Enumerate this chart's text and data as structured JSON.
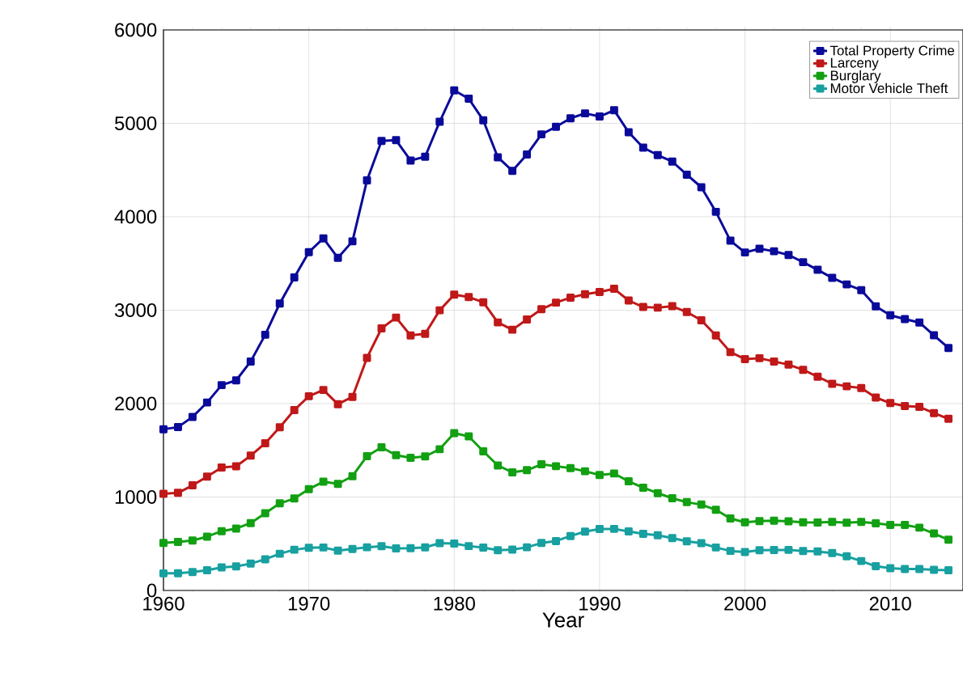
{
  "chart_data": {
    "type": "line",
    "xlabel": "Year",
    "x": [
      1960,
      1961,
      1962,
      1963,
      1964,
      1965,
      1966,
      1967,
      1968,
      1969,
      1970,
      1971,
      1972,
      1973,
      1974,
      1975,
      1976,
      1977,
      1978,
      1979,
      1980,
      1981,
      1982,
      1983,
      1984,
      1985,
      1986,
      1987,
      1988,
      1989,
      1990,
      1991,
      1992,
      1993,
      1994,
      1995,
      1996,
      1997,
      1998,
      1999,
      2000,
      2001,
      2002,
      2003,
      2004,
      2005,
      2006,
      2007,
      2008,
      2009,
      2010,
      2011,
      2012,
      2013,
      2014
    ],
    "series": [
      {
        "name": "Total Property Crime",
        "color": "#0a0a9a",
        "values": [
          1726,
          1748,
          1858,
          2012,
          2198,
          2249,
          2451,
          2737,
          3072,
          3351,
          3621,
          3769,
          3560,
          3737,
          4389,
          4811,
          4820,
          4602,
          4643,
          5017,
          5353,
          5264,
          5033,
          4637,
          4492,
          4666,
          4882,
          4963,
          5054,
          5107,
          5073,
          5140,
          4904,
          4740,
          4660,
          4591,
          4451,
          4316,
          4053,
          3744,
          3618,
          3658,
          3631,
          3591,
          3514,
          3432,
          3347,
          3276,
          3215,
          3041,
          2946,
          2905,
          2868,
          2731,
          2596
        ]
      },
      {
        "name": "Larceny",
        "color": "#c01818",
        "values": [
          1035,
          1045,
          1125,
          1219,
          1316,
          1329,
          1443,
          1576,
          1747,
          1931,
          2079,
          2146,
          1994,
          2072,
          2490,
          2805,
          2921,
          2730,
          2747,
          2999,
          3167,
          3140,
          3085,
          2869,
          2791,
          2901,
          3010,
          3081,
          3135,
          3171,
          3195,
          3229,
          3104,
          3034,
          3027,
          3043,
          2980,
          2892,
          2730,
          2551,
          2477,
          2486,
          2451,
          2417,
          2362,
          2288,
          2213,
          2185,
          2166,
          2065,
          2006,
          1974,
          1965,
          1899,
          1837
        ]
      },
      {
        "name": "Burglary",
        "color": "#12a012",
        "values": [
          509,
          519,
          535,
          576,
          635,
          663,
          721,
          827,
          932,
          984,
          1085,
          1164,
          1141,
          1223,
          1438,
          1532,
          1448,
          1420,
          1435,
          1512,
          1684,
          1650,
          1489,
          1338,
          1264,
          1287,
          1350,
          1330,
          1309,
          1276,
          1236,
          1252,
          1168,
          1100,
          1042,
          987,
          945,
          919,
          863,
          770,
          729,
          742,
          747,
          741,
          730,
          727,
          733,
          726,
          733,
          718,
          701,
          701,
          672,
          610,
          543
        ]
      },
      {
        "name": "Motor Vehicle Theft",
        "color": "#18a0a0",
        "values": [
          183,
          184,
          197,
          217,
          247,
          257,
          287,
          334,
          393,
          436,
          457,
          460,
          426,
          443,
          462,
          474,
          450,
          452,
          461,
          506,
          502,
          475,
          459,
          431,
          437,
          462,
          508,
          529,
          583,
          630,
          658,
          659,
          632,
          606,
          591,
          560,
          526,
          506,
          460,
          423,
          412,
          431,
          433,
          434,
          422,
          417,
          400,
          365,
          315,
          259,
          239,
          230,
          230,
          221,
          216
        ]
      }
    ],
    "xlim": [
      1960,
      2015
    ],
    "ylim": [
      0,
      6000
    ],
    "xticks": [
      1960,
      1970,
      1980,
      1990,
      2000,
      2010
    ],
    "yticks": [
      0,
      1000,
      2000,
      3000,
      4000,
      5000,
      6000
    ],
    "grid": true,
    "legend": "top right",
    "marker": "square",
    "line_style": "solid"
  }
}
